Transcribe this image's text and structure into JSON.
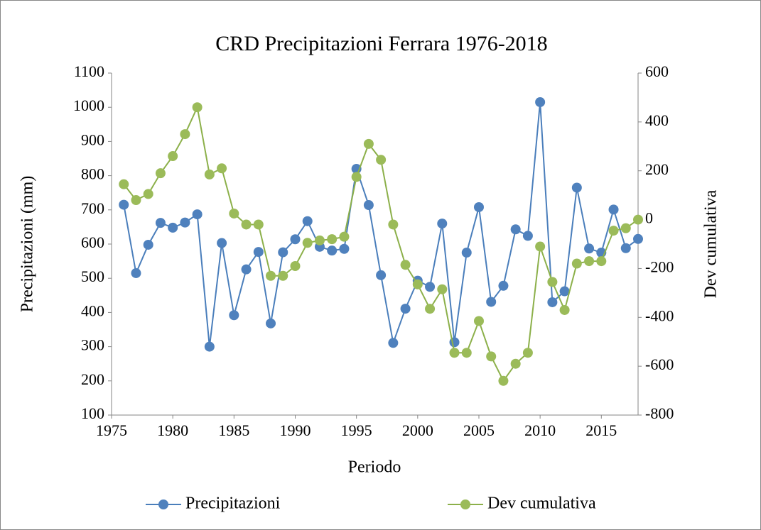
{
  "chart_data": {
    "type": "line",
    "title": "CRD Precipitazioni Ferrara 1976-2018",
    "x_label": "Periodo",
    "y_label": "Precipitazioni (mm)",
    "y2_label": "Dev cumulativa",
    "x": [
      1976,
      1977,
      1978,
      1979,
      1980,
      1981,
      1982,
      1983,
      1984,
      1985,
      1986,
      1987,
      1988,
      1989,
      1990,
      1991,
      1992,
      1993,
      1994,
      1995,
      1996,
      1997,
      1998,
      1999,
      2000,
      2001,
      2002,
      2003,
      2004,
      2005,
      2006,
      2007,
      2008,
      2009,
      2010,
      2011,
      2012,
      2013,
      2014,
      2015,
      2016,
      2017,
      2018
    ],
    "series": [
      {
        "name": "Precipitazioni",
        "color": "#4a7ebb",
        "marker_color": "#4f81bd",
        "values": [
          715,
          515,
          598,
          662,
          648,
          663,
          687,
          300,
          603,
          392,
          526,
          577,
          368,
          576,
          614,
          667,
          592,
          581,
          586,
          820,
          714,
          509,
          311,
          411,
          493,
          475,
          660,
          313,
          575,
          708,
          431,
          478,
          643,
          624,
          1015,
          430,
          462,
          765,
          587,
          575,
          701,
          588,
          615
        ]
      },
      {
        "name": "Dev cumulativa",
        "color": "#8cb04a",
        "marker_color": "#9bbb59",
        "axis": "y2",
        "values": [
          145,
          80,
          105,
          190,
          260,
          350,
          460,
          185,
          210,
          25,
          -20,
          -20,
          -230,
          -230,
          -190,
          -95,
          -85,
          -80,
          -70,
          175,
          310,
          245,
          -20,
          -185,
          -265,
          -365,
          -285,
          -545,
          -545,
          -415,
          -560,
          -660,
          -590,
          -545,
          -110,
          -255,
          -370,
          -180,
          -170,
          -170,
          -45,
          -35,
          0
        ]
      }
    ],
    "xlim": [
      1975,
      2018
    ],
    "xticks": [
      1975,
      1980,
      1985,
      1990,
      1995,
      2000,
      2005,
      2010,
      2015
    ],
    "ylim": [
      100,
      1100
    ],
    "yticks": [
      100,
      200,
      300,
      400,
      500,
      600,
      700,
      800,
      900,
      1000,
      1100
    ],
    "y2lim": [
      -800,
      600
    ],
    "y2ticks": [
      -800,
      -600,
      -400,
      -200,
      0,
      200,
      400,
      600
    ],
    "grid": false,
    "legend": "bottom"
  }
}
